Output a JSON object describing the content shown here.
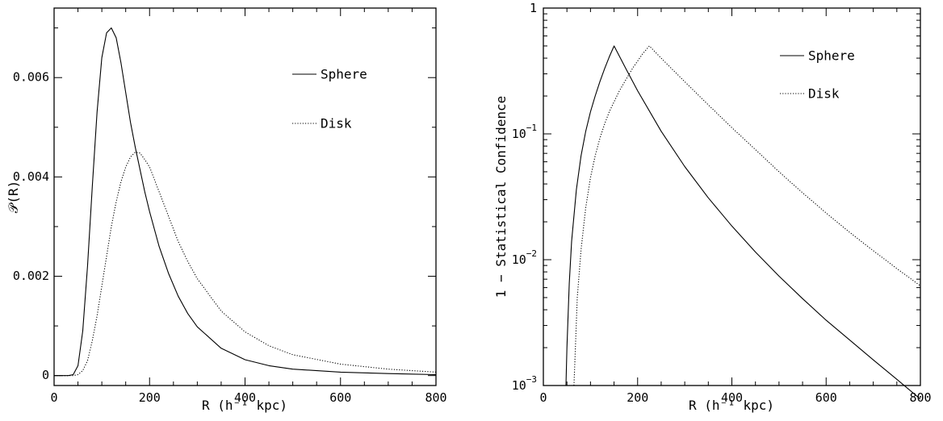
{
  "chart_data": [
    {
      "type": "line",
      "xlabel": "R (h⁻¹ kpc)",
      "ylabel": "𝒫(R)",
      "xlim": [
        0,
        800
      ],
      "ylim": [
        -0.0002,
        0.0074
      ],
      "x_ticks": [
        0,
        200,
        400,
        600,
        800
      ],
      "x_tick_labels": [
        "0",
        "200",
        "400",
        "600",
        "800"
      ],
      "y_ticks": [
        0,
        0.002,
        0.004,
        0.006
      ],
      "y_tick_labels": [
        "0",
        "0.002",
        "0.004",
        "0.006"
      ],
      "legend_position": "top-right",
      "series": [
        {
          "name": "Sphere",
          "style": "solid",
          "x": [
            0,
            30,
            40,
            50,
            60,
            70,
            80,
            90,
            100,
            110,
            120,
            130,
            140,
            150,
            160,
            170,
            180,
            190,
            200,
            220,
            240,
            260,
            280,
            300,
            350,
            400,
            450,
            500,
            600,
            700,
            800
          ],
          "y": [
            0,
            0,
            2e-05,
            0.0002,
            0.0009,
            0.0022,
            0.0038,
            0.0053,
            0.0064,
            0.0069,
            0.007,
            0.0068,
            0.0063,
            0.0057,
            0.0051,
            0.0046,
            0.00415,
            0.0037,
            0.0033,
            0.0026,
            0.00205,
            0.0016,
            0.00125,
            0.00098,
            0.00055,
            0.00032,
            0.0002,
            0.00013,
            7e-05,
            4e-05,
            2e-05
          ]
        },
        {
          "name": "Disk",
          "style": "dotted",
          "x": [
            0,
            40,
            50,
            60,
            70,
            80,
            90,
            100,
            110,
            120,
            130,
            140,
            150,
            160,
            170,
            180,
            190,
            200,
            220,
            240,
            260,
            280,
            300,
            350,
            400,
            450,
            500,
            600,
            700,
            800
          ],
          "y": [
            0,
            0,
            2e-05,
            0.0001,
            0.0003,
            0.0007,
            0.0012,
            0.0018,
            0.0024,
            0.003,
            0.0035,
            0.0039,
            0.0042,
            0.0044,
            0.0045,
            0.00448,
            0.00435,
            0.0042,
            0.0037,
            0.0032,
            0.0027,
            0.0023,
            0.00195,
            0.0013,
            0.00088,
            0.0006,
            0.00042,
            0.00023,
            0.00013,
            7e-05
          ]
        }
      ]
    },
    {
      "type": "line",
      "xlabel": "R (h⁻¹ kpc)",
      "ylabel": "1 − Statistical Confidence",
      "xlim": [
        0,
        800
      ],
      "ylim": [
        0.001,
        1
      ],
      "yscale": "log",
      "x_ticks": [
        0,
        200,
        400,
        600,
        800
      ],
      "x_tick_labels": [
        "0",
        "200",
        "400",
        "600",
        "800"
      ],
      "y_ticks": [
        0.001,
        0.01,
        0.1,
        1
      ],
      "y_tick_labels": [
        {
          "base": "10",
          "exp": "−3"
        },
        {
          "base": "10",
          "exp": "−2"
        },
        {
          "base": "10",
          "exp": "−1"
        },
        {
          "base": "1",
          "exp": ""
        }
      ],
      "legend_position": "top-right",
      "series": [
        {
          "name": "Sphere",
          "style": "solid",
          "x": [
            48,
            50,
            55,
            60,
            70,
            80,
            90,
            100,
            110,
            120,
            130,
            140,
            150,
            175,
            200,
            250,
            300,
            350,
            400,
            450,
            500,
            550,
            600,
            650,
            700,
            750,
            800
          ],
          "y": [
            0.001,
            0.002,
            0.0065,
            0.014,
            0.036,
            0.067,
            0.105,
            0.15,
            0.2,
            0.26,
            0.33,
            0.41,
            0.5,
            0.33,
            0.22,
            0.105,
            0.055,
            0.031,
            0.0185,
            0.0115,
            0.0074,
            0.0049,
            0.0033,
            0.0023,
            0.0016,
            0.00112,
            0.00078
          ]
        },
        {
          "name": "Disk",
          "style": "dotted",
          "x": [
            65,
            68,
            72,
            80,
            90,
            100,
            110,
            120,
            130,
            140,
            150,
            160,
            170,
            180,
            190,
            200,
            210,
            225,
            250,
            300,
            350,
            400,
            450,
            500,
            550,
            600,
            650,
            700,
            750,
            800
          ],
          "y": [
            0.001,
            0.002,
            0.005,
            0.012,
            0.026,
            0.045,
            0.067,
            0.092,
            0.12,
            0.15,
            0.18,
            0.215,
            0.25,
            0.29,
            0.335,
            0.38,
            0.43,
            0.5,
            0.4,
            0.26,
            0.17,
            0.112,
            0.075,
            0.05,
            0.034,
            0.0235,
            0.0165,
            0.0118,
            0.0085,
            0.0062
          ]
        }
      ]
    }
  ]
}
